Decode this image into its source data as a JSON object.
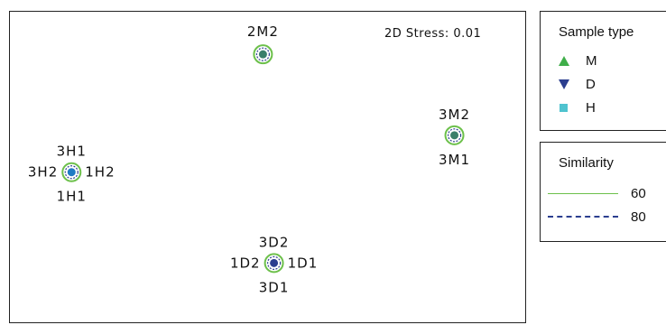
{
  "chart_data": {
    "type": "scatter",
    "title": "",
    "xlabel": "",
    "ylabel": "",
    "stress_label": "2D Stress: 0.01",
    "grid": false,
    "legend_placement": "right",
    "series": [
      {
        "name": "M",
        "symbol": "triangle-up",
        "color": "#3fae49"
      },
      {
        "name": "D",
        "symbol": "triangle-down",
        "color": "#2b3e8f"
      },
      {
        "name": "H",
        "symbol": "square",
        "color": "#4fc3cf"
      }
    ],
    "points": [
      {
        "group": "2M",
        "labels": [
          "2M2"
        ],
        "x": -0.05,
        "y": 0.75,
        "color": "#3a7f6a"
      },
      {
        "group": "3M",
        "labels": [
          "3M2",
          "3M1"
        ],
        "x": 0.82,
        "y": 0.18,
        "color": "#3a7f6a"
      },
      {
        "group": "3H",
        "labels": [
          "3H1",
          "3H2",
          "1H2",
          "1H1"
        ],
        "x": -0.92,
        "y": -0.08,
        "color": "#1f7bc4"
      },
      {
        "group": "3D",
        "labels": [
          "3D2",
          "1D2",
          "1D1",
          "3D1"
        ],
        "x": 0.0,
        "y": -0.72,
        "color": "#2b3e8f"
      }
    ],
    "similarity": [
      {
        "value": "60",
        "style": "solid",
        "color": "#6cc04a"
      },
      {
        "value": "80",
        "style": "dashed",
        "color": "#2b3e8f"
      }
    ]
  },
  "legend": {
    "sample_title": "Sample type",
    "similarity_title": "Similarity"
  }
}
